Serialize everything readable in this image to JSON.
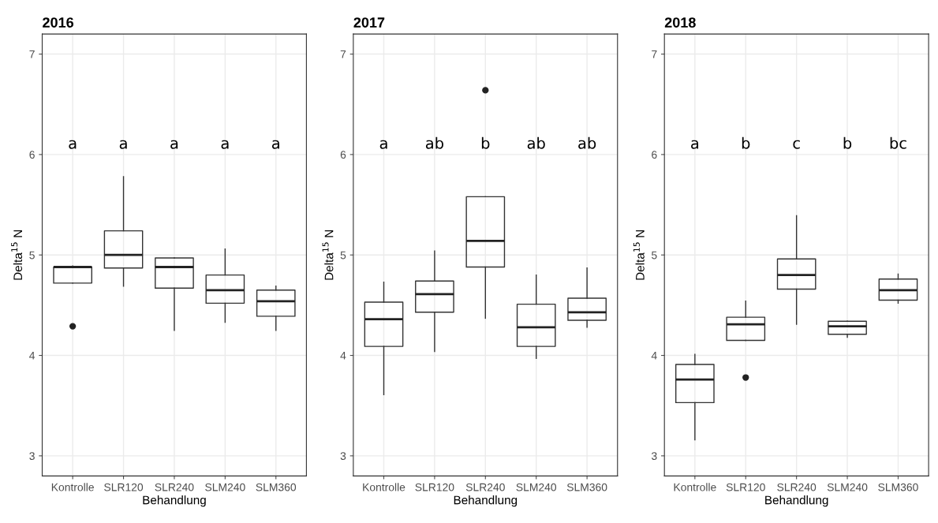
{
  "chart_data": [
    {
      "type": "box",
      "title": "2016",
      "xlabel": "Behandlung",
      "ylabel": "Delta$^{15}$ N",
      "categories": [
        "Kontrolle",
        "SLR120",
        "SLR240",
        "SLM240",
        "SLM360"
      ],
      "ylim": [
        2.8,
        7.2
      ],
      "yticks": [
        3,
        4,
        5,
        6,
        7
      ],
      "grid": true,
      "boxes": [
        {
          "low": 4.72,
          "q1": 4.72,
          "median": 4.88,
          "q3": 4.88,
          "high": 4.89,
          "outliers": [
            4.29
          ]
        },
        {
          "low": 4.69,
          "q1": 4.87,
          "median": 5.0,
          "q3": 5.24,
          "high": 5.78
        },
        {
          "low": 4.25,
          "q1": 4.67,
          "median": 4.88,
          "q3": 4.97,
          "high": 4.97
        },
        {
          "low": 4.33,
          "q1": 4.52,
          "median": 4.65,
          "q3": 4.8,
          "high": 5.06
        },
        {
          "low": 4.25,
          "q1": 4.39,
          "median": 4.54,
          "q3": 4.65,
          "high": 4.69
        }
      ],
      "annotations": [
        "a",
        "a",
        "a",
        "a",
        "a"
      ]
    },
    {
      "type": "box",
      "title": "2017",
      "xlabel": "Behandlung",
      "ylabel": "Delta$^{15}$ N",
      "categories": [
        "Kontrolle",
        "SLR120",
        "SLR240",
        "SLM240",
        "SLM360"
      ],
      "ylim": [
        2.8,
        7.2
      ],
      "yticks": [
        3,
        4,
        5,
        6,
        7
      ],
      "grid": true,
      "boxes": [
        {
          "low": 3.61,
          "q1": 4.09,
          "median": 4.36,
          "q3": 4.53,
          "high": 4.73
        },
        {
          "low": 4.04,
          "q1": 4.43,
          "median": 4.61,
          "q3": 4.74,
          "high": 5.04
        },
        {
          "low": 4.37,
          "q1": 4.88,
          "median": 5.14,
          "q3": 5.58,
          "high": 5.58,
          "outliers": [
            6.64
          ]
        },
        {
          "low": 3.97,
          "q1": 4.09,
          "median": 4.28,
          "q3": 4.51,
          "high": 4.8
        },
        {
          "low": 4.28,
          "q1": 4.35,
          "median": 4.43,
          "q3": 4.57,
          "high": 4.87
        }
      ],
      "annotations": [
        "a",
        "ab",
        "b",
        "ab",
        "ab"
      ]
    },
    {
      "type": "box",
      "title": "2018",
      "xlabel": "Behandlung",
      "ylabel": "Delta$^{15}$ N",
      "categories": [
        "Kontrolle",
        "SLR120",
        "SLR240",
        "SLM240",
        "SLM360"
      ],
      "ylim": [
        2.8,
        7.2
      ],
      "yticks": [
        3,
        4,
        5,
        6,
        7
      ],
      "grid": true,
      "boxes": [
        {
          "low": 3.16,
          "q1": 3.53,
          "median": 3.76,
          "q3": 3.91,
          "high": 4.01
        },
        {
          "low": 4.15,
          "q1": 4.15,
          "median": 4.31,
          "q3": 4.38,
          "high": 4.54,
          "outliers": [
            3.78
          ]
        },
        {
          "low": 4.31,
          "q1": 4.66,
          "median": 4.8,
          "q3": 4.96,
          "high": 5.39
        },
        {
          "low": 4.18,
          "q1": 4.21,
          "median": 4.29,
          "q3": 4.34,
          "high": 4.34
        },
        {
          "low": 4.52,
          "q1": 4.55,
          "median": 4.65,
          "q3": 4.76,
          "high": 4.81
        }
      ],
      "annotations": [
        "a",
        "b",
        "c",
        "b",
        "bc"
      ]
    }
  ]
}
